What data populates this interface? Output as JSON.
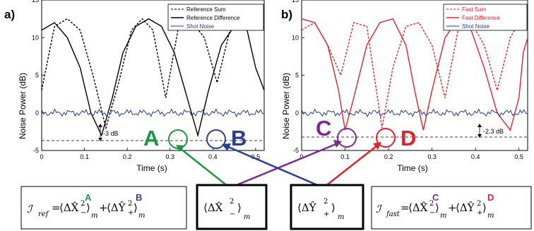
{
  "chart_data": [
    {
      "type": "line",
      "panel": "a)",
      "xlabel": "Time (s)",
      "ylabel": "Noise Power (dB)",
      "xlim": [
        0,
        0.52
      ],
      "ylim": [
        -5,
        15
      ],
      "xticks": [
        "0",
        "0.1",
        "0.2",
        "0.3",
        "0.4",
        "0.5"
      ],
      "yticks": [
        "-5",
        "0",
        "5",
        "10",
        "15"
      ],
      "legend_position": "top-right",
      "baseline_db": -3,
      "annotation": "-3 dB",
      "series": [
        {
          "name": "Reference Sum",
          "style": "dashed",
          "color": "#000000",
          "x": [
            0,
            0.03,
            0.06,
            0.09,
            0.12,
            0.15,
            0.18,
            0.21,
            0.235,
            0.26,
            0.29,
            0.32,
            0.35,
            0.38,
            0.41,
            0.44,
            0.47,
            0.49,
            0.52
          ],
          "y": [
            3,
            11.5,
            12.5,
            11,
            5,
            -2,
            4,
            11,
            12.5,
            11,
            2,
            11.5,
            12.2,
            10,
            4,
            11,
            12,
            11,
            11.5
          ]
        },
        {
          "name": "Reference Difference",
          "style": "solid",
          "color": "#000000",
          "x": [
            0,
            0.03,
            0.06,
            0.09,
            0.115,
            0.14,
            0.165,
            0.19,
            0.22,
            0.25,
            0.28,
            0.31,
            0.34,
            0.365,
            0.39,
            0.42,
            0.45,
            0.48,
            0.5,
            0.52
          ],
          "y": [
            11,
            12,
            10,
            6,
            0,
            -3,
            2,
            8,
            11.5,
            12.5,
            11.5,
            8,
            2,
            -3,
            3,
            9,
            11.5,
            11,
            6,
            3
          ]
        },
        {
          "name": "Shot Noise",
          "style": "solid",
          "color": "#1f3a93",
          "level_db": 0
        }
      ],
      "markers": [
        {
          "label": "A",
          "x": 0.37,
          "y": -2.8,
          "color": "#1a9a3e"
        },
        {
          "label": "B",
          "x": 0.47,
          "y": -2.8,
          "color": "#2a3f8f"
        }
      ]
    },
    {
      "type": "line",
      "panel": "b)",
      "xlabel": "Time (s)",
      "ylabel": "Noise Power (dB)",
      "xlim": [
        0,
        0.52
      ],
      "ylim": [
        -5,
        15
      ],
      "xticks": [
        "0",
        "0.1",
        "0.2",
        "0.3",
        "0.4",
        "0.5"
      ],
      "yticks": [
        "-5",
        "0",
        "5",
        "10",
        "15"
      ],
      "legend_position": "top-right",
      "baseline_db": -2.3,
      "annotation": "-2.3 dB",
      "series": [
        {
          "name": "Fast Sum",
          "style": "dashed",
          "color": "#e8202a",
          "x": [
            0,
            0.03,
            0.06,
            0.09,
            0.12,
            0.15,
            0.185,
            0.21,
            0.24,
            0.27,
            0.3,
            0.33,
            0.36,
            0.39,
            0.42,
            0.45,
            0.48,
            0.5,
            0.52
          ],
          "y": [
            11,
            12,
            9,
            5,
            12,
            11.5,
            -2,
            6,
            11.5,
            12,
            9,
            2,
            11,
            12,
            9,
            3,
            10,
            12,
            11
          ]
        },
        {
          "name": "Fast Difference",
          "style": "solid",
          "color": "#e8202a",
          "x": [
            0,
            0.03,
            0.06,
            0.085,
            0.1,
            0.12,
            0.15,
            0.18,
            0.21,
            0.24,
            0.26,
            0.28,
            0.3,
            0.33,
            0.36,
            0.39,
            0.42,
            0.45,
            0.48,
            0.5,
            0.51,
            0.52
          ],
          "y": [
            12.5,
            12,
            9,
            3,
            -2.3,
            2,
            9,
            12,
            12.5,
            9,
            3,
            -2.3,
            3,
            10,
            12.5,
            11,
            6,
            0,
            -2.3,
            2,
            8,
            10
          ]
        },
        {
          "name": "Shot Noise",
          "style": "solid",
          "color": "#1f3a93",
          "level_db": 0
        }
      ],
      "markers": [
        {
          "label": "C",
          "x": 0.1,
          "y": -2.2,
          "color": "#7b2d8b"
        },
        {
          "label": "D",
          "x": 0.185,
          "y": -2.2,
          "color": "#e8202a"
        }
      ]
    }
  ],
  "equations": {
    "ref": {
      "symbol": "ℐ",
      "subscript": "ref",
      "eq": "=",
      "term1": "⟨ΔX̂",
      "term1_sup": "2",
      "term1_sub": "−",
      "term1_close": "⟩",
      "m1": "m",
      "plus": "+",
      "term2": "⟨ΔŶ",
      "term2_sup": "2",
      "term2_sub": "+",
      "term2_close": "⟩",
      "m2": "m",
      "label1": "A",
      "label2": "B"
    },
    "x_term": {
      "open": "⟨ΔX̂",
      "sup": "2",
      "sub": "−",
      "close": "⟩",
      "m": "m"
    },
    "y_term": {
      "open": "⟨ΔŶ",
      "sup": "2",
      "sub": "+",
      "close": "⟩",
      "m": "m"
    },
    "fast": {
      "symbol": "ℐ",
      "subscript": "fast",
      "eq": "=",
      "term1": "⟨ΔX̂",
      "term1_sup": "2",
      "term1_sub": "−",
      "term1_close": "⟩",
      "m1": "m",
      "plus": "+",
      "term2": "⟨ΔŶ",
      "term2_sup": "2",
      "term2_sub": "+",
      "term2_close": "⟩",
      "m2": "m",
      "label1": "C",
      "label2": "D"
    }
  },
  "colors": {
    "green": "#1a9a3e",
    "navy": "#2a3f8f",
    "purple": "#7b2d8b",
    "red": "#e8202a",
    "shot": "#1f3a93"
  }
}
